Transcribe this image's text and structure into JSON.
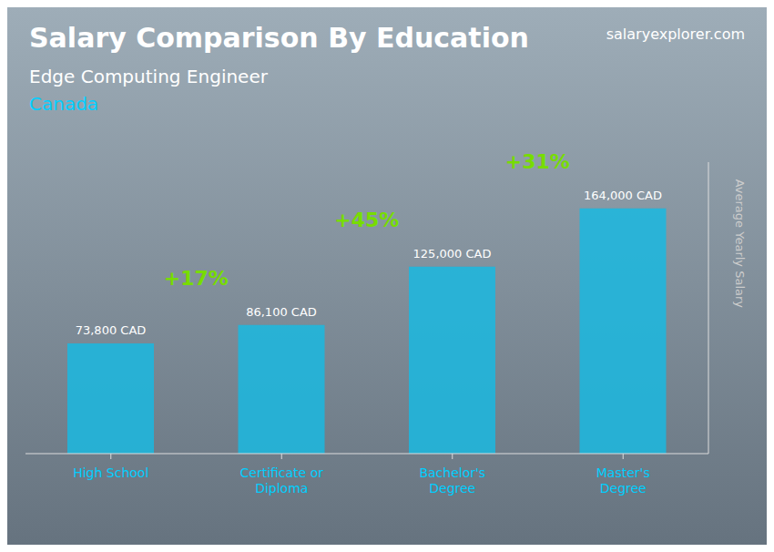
{
  "chart_data": {
    "type": "bar",
    "title": "Salary Comparison By Education",
    "subtitle": [
      "Edge Computing Engineer",
      "Canada"
    ],
    "ylabel": "Average Yearly Salary",
    "annotations": [
      "salaryexplorer.com",
      "+17%",
      "+45%",
      "+31%"
    ],
    "categories": [
      "High School",
      "Certificate or\nDiploma",
      "Bachelor's\nDegree",
      "Master's\nDegree"
    ],
    "values": [
      73800,
      86100,
      125000,
      164000
    ],
    "value_labels": [
      "73,800 CAD",
      "86,100 CAD",
      "125,000 CAD",
      "164,000 CAD"
    ],
    "data_labels": true,
    "color": "#1ab8e0",
    "ylim": [
      0,
      195000
    ],
    "tick_labels": "x",
    "grid": false
  }
}
